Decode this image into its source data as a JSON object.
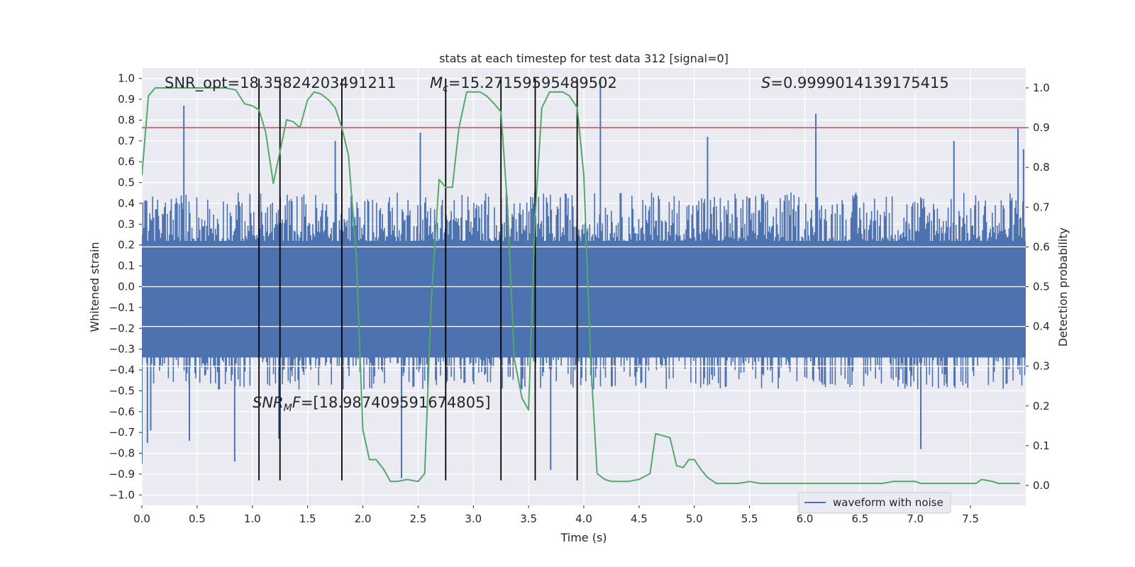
{
  "chart_data": {
    "type": "line",
    "title": "stats at each timestep for test data 312 [signal=0]",
    "xlabel": "Time (s)",
    "ylabel_left": "Whitened strain",
    "ylabel_right": "Detection probability",
    "xlim": [
      0.0,
      8.0
    ],
    "ylim_left": [
      -1.05,
      1.05
    ],
    "ylim_right": [
      -0.05,
      1.05
    ],
    "xticks": [
      "0.0",
      "0.5",
      "1.0",
      "1.5",
      "2.0",
      "2.5",
      "3.0",
      "3.5",
      "4.0",
      "4.5",
      "5.0",
      "5.5",
      "6.0",
      "6.5",
      "7.0",
      "7.5"
    ],
    "yticks_left": [
      "-1.0",
      "-0.9",
      "-0.8",
      "-0.7",
      "-0.6",
      "-0.5",
      "-0.4",
      "-0.3",
      "-0.2",
      "-0.1",
      "0.0",
      "0.1",
      "0.2",
      "0.3",
      "0.4",
      "0.5",
      "0.6",
      "0.7",
      "0.8",
      "0.9",
      "1.0"
    ],
    "yticks_right": [
      "0.0",
      "0.1",
      "0.2",
      "0.3",
      "0.4",
      "0.5",
      "0.6",
      "0.7",
      "0.8",
      "0.9",
      "1.0"
    ],
    "grid": true,
    "annotations": {
      "snr_opt": "SNR_opt=18.35824203491211",
      "mc_prefix": "M",
      "mc_sub": "c",
      "mc_value": "=15.27159595489502",
      "s_prefix": "S",
      "s_value": "=0.9999014139175415",
      "snr_mf_prefix": "SNR",
      "snr_mf_sub": "M",
      "snr_mf_mid": "F",
      "snr_mf_value": "=[18.987409591674805]"
    },
    "legend": {
      "label": "waveform with noise",
      "position": "lower-right"
    },
    "threshold": {
      "value": 0.9,
      "axis": "right",
      "color": "#c44e52"
    },
    "vertical_lines": {
      "x": [
        1.06,
        1.25,
        1.81,
        2.75,
        3.25,
        3.56,
        3.94
      ],
      "y_range": [
        -0.93,
        1.0
      ],
      "color": "#000000"
    },
    "strain_series": {
      "name": "waveform with noise",
      "color": "#4c72b0",
      "envelope_typical": 0.38,
      "spikes": [
        {
          "x": 0.0,
          "y": -0.85
        },
        {
          "x": 0.05,
          "y": -0.75
        },
        {
          "x": 0.08,
          "y": -0.69
        },
        {
          "x": 0.38,
          "y": 0.87
        },
        {
          "x": 0.43,
          "y": -0.74
        },
        {
          "x": 0.84,
          "y": -0.84
        },
        {
          "x": 1.24,
          "y": -0.73
        },
        {
          "x": 1.75,
          "y": 0.7
        },
        {
          "x": 2.35,
          "y": -0.92
        },
        {
          "x": 2.52,
          "y": 0.74
        },
        {
          "x": 3.7,
          "y": -0.88
        },
        {
          "x": 4.15,
          "y": 1.0
        },
        {
          "x": 5.12,
          "y": 0.72
        },
        {
          "x": 6.1,
          "y": 0.83
        },
        {
          "x": 7.05,
          "y": -0.78
        },
        {
          "x": 7.35,
          "y": 0.7
        },
        {
          "x": 7.93,
          "y": 0.76
        },
        {
          "x": 7.98,
          "y": 0.66
        }
      ]
    },
    "probability_series": {
      "name": "detection probability",
      "color": "#55a868",
      "x": [
        0.0,
        0.06,
        0.12,
        0.25,
        0.5,
        0.75,
        0.85,
        0.93,
        1.0,
        1.06,
        1.12,
        1.19,
        1.25,
        1.31,
        1.37,
        1.43,
        1.5,
        1.56,
        1.62,
        1.69,
        1.75,
        1.81,
        1.87,
        1.94,
        2.0,
        2.06,
        2.12,
        2.19,
        2.25,
        2.31,
        2.4,
        2.5,
        2.56,
        2.62,
        2.69,
        2.75,
        2.81,
        2.87,
        2.94,
        3.0,
        3.06,
        3.12,
        3.19,
        3.25,
        3.31,
        3.37,
        3.44,
        3.5,
        3.56,
        3.62,
        3.69,
        3.75,
        3.81,
        3.87,
        3.94,
        4.0,
        4.06,
        4.12,
        4.19,
        4.25,
        4.4,
        4.5,
        4.6,
        4.65,
        4.72,
        4.78,
        4.84,
        4.9,
        4.95,
        5.0,
        5.06,
        5.12,
        5.2,
        5.3,
        5.4,
        5.5,
        5.6,
        5.7,
        5.8,
        5.9,
        6.0,
        6.1,
        6.3,
        6.5,
        6.7,
        6.8,
        6.9,
        7.0,
        7.05,
        7.1,
        7.2,
        7.4,
        7.55,
        7.6,
        7.7,
        7.75,
        7.85,
        7.95
      ],
      "y": [
        0.78,
        0.98,
        1.0,
        1.0,
        1.0,
        1.0,
        0.995,
        0.96,
        0.955,
        0.945,
        0.89,
        0.76,
        0.84,
        0.92,
        0.915,
        0.9,
        0.97,
        0.99,
        0.985,
        0.97,
        0.95,
        0.9,
        0.83,
        0.58,
        0.14,
        0.065,
        0.065,
        0.04,
        0.01,
        0.01,
        0.015,
        0.01,
        0.03,
        0.47,
        0.77,
        0.75,
        0.75,
        0.9,
        0.99,
        0.99,
        0.99,
        0.98,
        0.96,
        0.94,
        0.7,
        0.32,
        0.22,
        0.19,
        0.68,
        0.95,
        0.99,
        0.99,
        0.99,
        0.98,
        0.95,
        0.78,
        0.33,
        0.03,
        0.015,
        0.01,
        0.01,
        0.015,
        0.03,
        0.13,
        0.125,
        0.12,
        0.05,
        0.045,
        0.065,
        0.065,
        0.04,
        0.02,
        0.005,
        0.005,
        0.005,
        0.01,
        0.005,
        0.005,
        0.005,
        0.005,
        0.005,
        0.005,
        0.005,
        0.005,
        0.005,
        0.01,
        0.01,
        0.01,
        0.005,
        0.005,
        0.005,
        0.005,
        0.005,
        0.015,
        0.01,
        0.005,
        0.005,
        0.005
      ]
    }
  }
}
